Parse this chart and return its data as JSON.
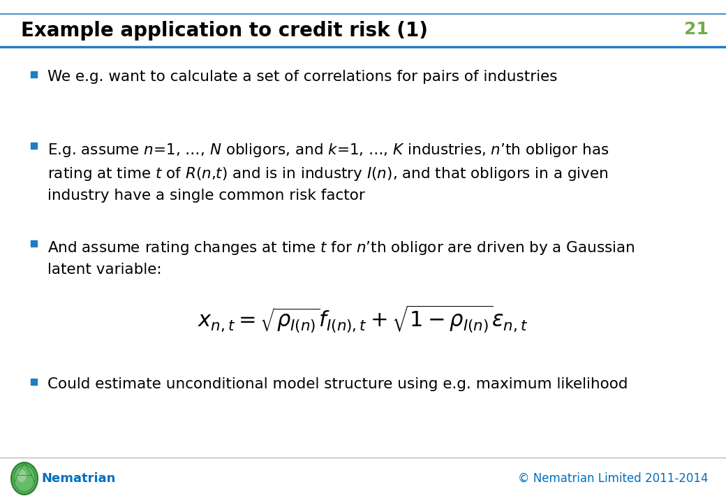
{
  "title": "Example application to credit risk (1)",
  "slide_number": "21",
  "title_color": "#000000",
  "slide_number_color": "#70AD47",
  "header_line_color": "#1F7DC4",
  "bullet_color": "#1F7DC4",
  "background_color": "#FFFFFF",
  "footer_logo_text": "Nematrian",
  "footer_logo_color": "#0070C0",
  "footer_copyright": "© Nematrian Limited 2011-2014",
  "footer_copyright_color": "#0070C0",
  "title_fontsize": 20,
  "body_fontsize": 15.5,
  "formula_fontsize": 16,
  "slide_number_fontsize": 18,
  "footer_fontsize": 12
}
